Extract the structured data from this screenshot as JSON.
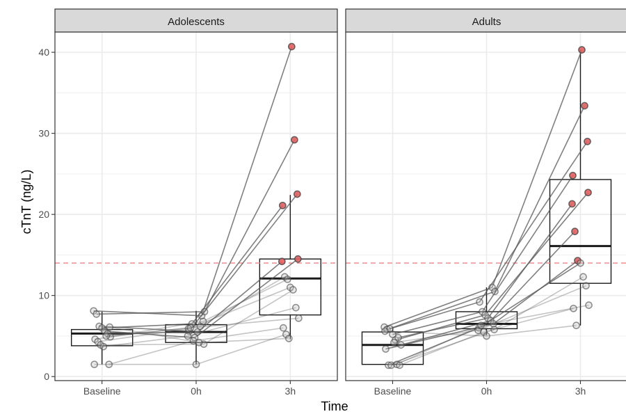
{
  "chart_data": {
    "type": "box",
    "title": "",
    "xlabel": "Time",
    "ylabel": "cTnT (ng/L)",
    "categories": [
      "Baseline",
      "0h",
      "3h"
    ],
    "ylim": [
      -0.5,
      42.5
    ],
    "y_ticks": [
      0,
      10,
      20,
      30,
      40
    ],
    "reference_line": {
      "y": 14,
      "color": "#f08080",
      "style": "dashed"
    },
    "grid": true,
    "colors": {
      "panel_border": "#333333",
      "strip_fill": "#d9d9d9",
      "grid": "#ebebeb",
      "box_line": "#1a1a1a",
      "subject_line": "#555555",
      "point_normal": "#bdbdbd",
      "point_above_reference": "#e06060"
    },
    "panels": [
      {
        "label": "Adolescents",
        "boxes": [
          {
            "category": "Baseline",
            "min": 1.5,
            "q1": 3.8,
            "median": 5.3,
            "q3": 5.8,
            "max": 8.0
          },
          {
            "category": "0h",
            "min": 1.5,
            "q1": 4.2,
            "median": 5.5,
            "q3": 6.4,
            "max": 8.1
          },
          {
            "category": "3h",
            "min": 4.6,
            "q1": 7.6,
            "median": 12.1,
            "q3": 14.5,
            "max": 22.4
          }
        ],
        "subjects": [
          [
            8.1,
            7.5,
            40.7
          ],
          [
            7.7,
            8.0,
            29.2
          ],
          [
            6.2,
            5.6,
            22.5
          ],
          [
            6.0,
            6.5,
            21.1
          ],
          [
            5.6,
            4.8,
            14.5
          ],
          [
            5.3,
            5.5,
            14.2
          ],
          [
            4.9,
            6.2,
            12.3
          ],
          [
            4.6,
            6.8,
            12.0
          ],
          [
            4.3,
            5.9,
            11.0
          ],
          [
            3.9,
            4.0,
            10.7
          ],
          [
            3.7,
            5.0,
            8.5
          ],
          [
            5.0,
            6.0,
            7.2
          ],
          [
            1.5,
            4.4,
            6.0
          ],
          [
            1.5,
            1.5,
            5.2
          ],
          [
            6.1,
            4.2,
            4.7
          ]
        ]
      },
      {
        "label": "Adults",
        "boxes": [
          {
            "category": "Baseline",
            "min": 1.4,
            "q1": 1.5,
            "median": 3.9,
            "q3": 5.5,
            "max": 6.1
          },
          {
            "category": "0h",
            "min": 5.1,
            "q1": 5.9,
            "median": 6.5,
            "q3": 8.0,
            "max": 11.0
          },
          {
            "category": "3h",
            "min": 6.3,
            "q1": 11.5,
            "median": 16.1,
            "q3": 24.3,
            "max": 40.3
          }
        ],
        "subjects": [
          [
            6.1,
            11.0,
            40.3
          ],
          [
            5.8,
            10.5,
            33.4
          ],
          [
            5.9,
            9.2,
            29.0
          ],
          [
            5.2,
            8.0,
            24.8
          ],
          [
            4.5,
            7.6,
            22.7
          ],
          [
            4.8,
            7.2,
            21.3
          ],
          [
            3.9,
            6.9,
            17.9
          ],
          [
            3.4,
            6.5,
            14.3
          ],
          [
            1.4,
            6.0,
            14.0
          ],
          [
            1.4,
            5.8,
            12.3
          ],
          [
            4.2,
            5.7,
            11.2
          ],
          [
            1.5,
            6.3,
            8.8
          ],
          [
            1.4,
            5.5,
            8.4
          ],
          [
            5.6,
            5.0,
            6.3
          ]
        ]
      }
    ]
  }
}
